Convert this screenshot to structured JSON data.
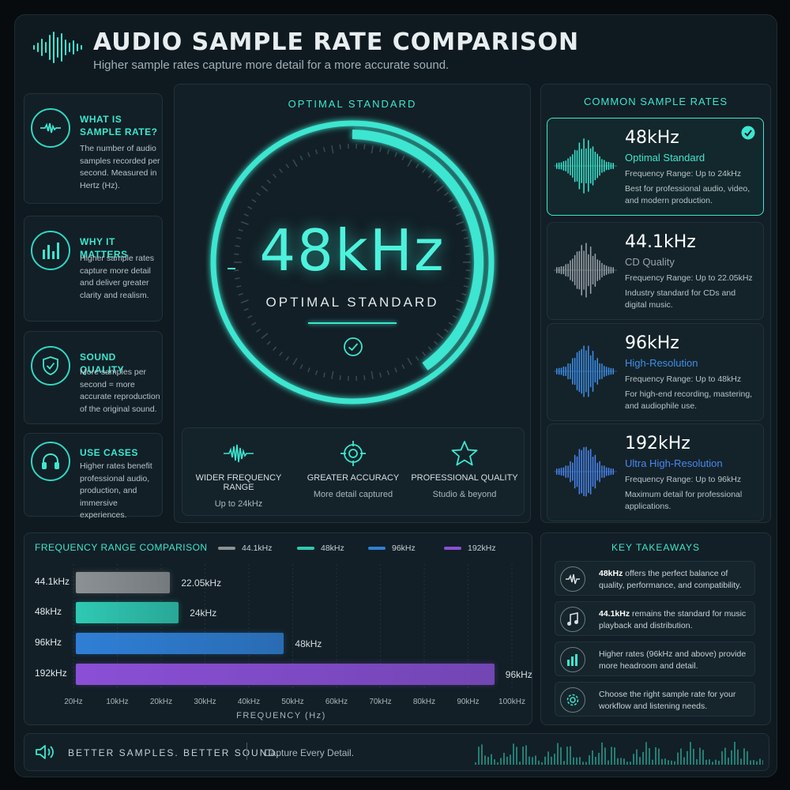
{
  "header": {
    "title": "AUDIO SAMPLE RATE COMPARISON",
    "subtitle": "Higher sample rates capture more detail for a more accurate sound."
  },
  "info_cards": [
    {
      "icon": "waveform-icon",
      "title": "WHAT IS SAMPLE RATE?",
      "text": "The number of audio samples recorded per second. Measured in Hertz (Hz)."
    },
    {
      "icon": "bar-chart-icon",
      "title": "WHY IT MATTERS",
      "text": "Higher sample rates capture more detail and deliver greater clarity and realism."
    },
    {
      "icon": "shield-check-icon",
      "title": "SOUND QUALITY",
      "text": "More samples per second = more accurate reproduction of the original sound."
    },
    {
      "icon": "headphones-icon",
      "title": "USE CASES",
      "text": "Higher rates benefit professional audio, production, and immersive experiences."
    }
  ],
  "gauge": {
    "label": "OPTIMAL STANDARD",
    "value": "48kHz",
    "caption": "OPTIMAL STANDARD"
  },
  "features": [
    {
      "icon": "waveform-icon",
      "title": "WIDER FREQUENCY RANGE",
      "sub": "Up to 24kHz"
    },
    {
      "icon": "target-icon",
      "title": "GREATER ACCURACY",
      "sub": "More detail captured"
    },
    {
      "icon": "star-icon",
      "title": "PROFESSIONAL QUALITY",
      "sub": "Studio & beyond"
    }
  ],
  "rates": {
    "title": "COMMON SAMPLE RATES",
    "items": [
      {
        "value": "48kHz",
        "name": "Optimal Standard",
        "range": "Frequency Range: Up to 24kHz",
        "desc": "Best for professional audio, video, and modern production.",
        "color": "#3de6d0",
        "selected": true
      },
      {
        "value": "44.1kHz",
        "name": "CD Quality",
        "range": "Frequency Range: Up to 22.05kHz",
        "desc": "Industry standard for CDs and digital music.",
        "color": "#9aa3a8",
        "selected": false
      },
      {
        "value": "96kHz",
        "name": "High-Resolution",
        "range": "Frequency Range: Up to 48kHz",
        "desc": "For high-end recording, mastering, and audiophile use.",
        "color": "#3f8fe8",
        "selected": false
      },
      {
        "value": "192kHz",
        "name": "Ultra High-Resolution",
        "range": "Frequency Range: Up to 96kHz",
        "desc": "Maximum detail for professional applications.",
        "color": "#4b86f0",
        "selected": false
      }
    ]
  },
  "chart_data": {
    "type": "bar",
    "orientation": "horizontal",
    "title": "FREQUENCY RANGE COMPARISON",
    "categories": [
      "44.1kHz",
      "48kHz",
      "96kHz",
      "192kHz"
    ],
    "values": [
      22.05,
      24,
      48,
      96
    ],
    "value_labels": [
      "22.05kHz",
      "24kHz",
      "48kHz",
      "96kHz"
    ],
    "colors": [
      "#8c9194",
      "#2fc9b3",
      "#2f7fd6",
      "#8a4fd6"
    ],
    "legend": [
      "44.1kHz",
      "48kHz",
      "96kHz",
      "192kHz"
    ],
    "legend_colors": [
      "#8c9194",
      "#2fc9b3",
      "#2f7fd6",
      "#8a4fd6"
    ],
    "legend_position": "top",
    "xlabel": "FREQUENCY (Hz)",
    "xticks": [
      "20Hz",
      "10kHz",
      "20kHz",
      "30kHz",
      "40kHz",
      "50kHz",
      "60kHz",
      "70kHz",
      "80kHz",
      "90kHz",
      "100kHz"
    ],
    "xlim": [
      0,
      100
    ],
    "grid": true
  },
  "takeaways": {
    "title": "KEY TAKEAWAYS",
    "items": [
      {
        "icon": "waveform-icon",
        "bold": "48kHz",
        "text": " offers the perfect balance of quality, performance, and compatibility."
      },
      {
        "icon": "music-note-icon",
        "bold": "44.1kHz",
        "text": " remains the standard for music playback and distribution."
      },
      {
        "icon": "bar-chart-icon",
        "bold": "",
        "text": "Higher rates (96kHz and above) provide more headroom and detail."
      },
      {
        "icon": "gear-icon",
        "bold": "",
        "text": "Choose the right sample rate for your workflow and listening needs."
      }
    ]
  },
  "footer": {
    "tagline": "BETTER SAMPLES. BETTER SOUND.",
    "note": "Capture Every Detail."
  }
}
